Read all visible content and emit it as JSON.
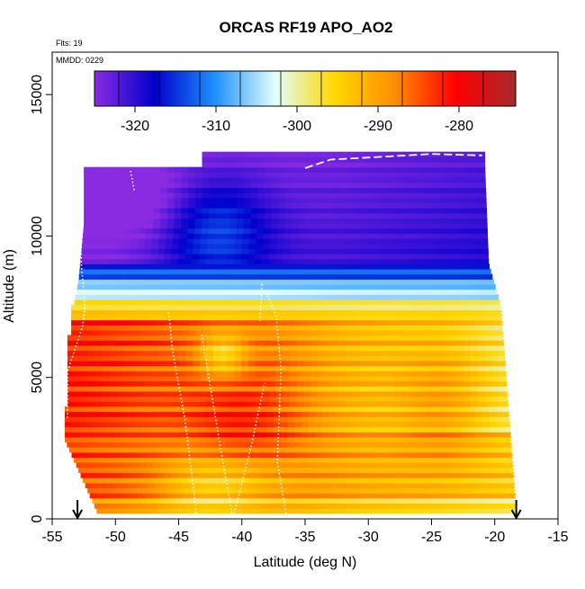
{
  "chart_data": {
    "type": "heatmap",
    "title": "ORCAS RF19 APO_AO2",
    "annotations": [
      "Flts: 19",
      "MMDD: 0229"
    ],
    "xlabel": "Latitude (deg N)",
    "ylabel": "Altitude (m)",
    "xlim": [
      -55,
      -15
    ],
    "ylim": [
      0,
      16500
    ],
    "x_ticks": [
      -55,
      -50,
      -45,
      -40,
      -35,
      -30,
      -25,
      -20,
      -15
    ],
    "x_tick_labels": [
      "-55",
      "-50",
      "-45",
      "-40",
      "-35",
      "-30",
      "-25",
      "-20",
      "-15"
    ],
    "y_ticks": [
      0,
      5000,
      10000,
      15000
    ],
    "y_tick_labels": [
      "0",
      "5000",
      "10000",
      "15000"
    ],
    "colorbar": {
      "range": [
        -325,
        -273
      ],
      "ticks": [
        -320,
        -310,
        -300,
        -290,
        -280
      ],
      "tick_labels": [
        "-320",
        "-310",
        "-300",
        "-290",
        "-280"
      ],
      "colors": [
        "#8a2be2",
        "#0000cd",
        "#1e90ff",
        "#e0ffff",
        "#ffd700",
        "#ff8c00",
        "#ff0000",
        "#a52a2a"
      ]
    },
    "arrow_markers_x": [
      -53,
      -18.3
    ],
    "grid": false,
    "legend": "top-inside-colorbar"
  }
}
